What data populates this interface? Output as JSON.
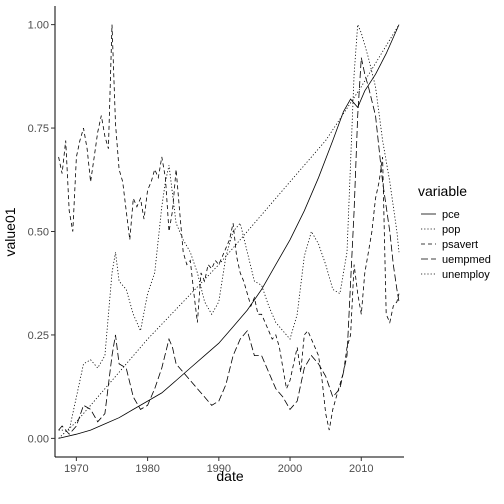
{
  "chart_data": {
    "type": "line",
    "xlabel": "date",
    "ylabel": "value01",
    "xlim": [
      1967,
      2016
    ],
    "ylim": [
      -0.045,
      1.045
    ],
    "x_ticks": [
      1970,
      1980,
      1990,
      2000,
      2010
    ],
    "x_tick_labels": [
      "1970",
      "1980",
      "1990",
      "2000",
      "2010"
    ],
    "y_ticks": [
      0,
      0.25,
      0.5,
      0.75,
      1
    ],
    "y_tick_labels": [
      "0.00",
      "0.25",
      "0.50",
      "0.75",
      "1.00"
    ],
    "grid": false,
    "legend": {
      "title": "variable",
      "position": "right"
    },
    "series": [
      {
        "name": "pce",
        "linetype": "solid",
        "x": [
          1967.5,
          1970,
          1972,
          1974,
          1976,
          1978,
          1980,
          1982,
          1984,
          1986,
          1988,
          1990,
          1992,
          1994,
          1996,
          1998,
          2000,
          2002,
          2004,
          2006,
          2007.5,
          2008.5,
          2009.5,
          2010.5,
          2012,
          2013.5,
          2015.3
        ],
        "y": [
          0.0,
          0.01,
          0.02,
          0.035,
          0.05,
          0.07,
          0.09,
          0.11,
          0.14,
          0.17,
          0.2,
          0.23,
          0.27,
          0.31,
          0.36,
          0.42,
          0.48,
          0.55,
          0.63,
          0.72,
          0.79,
          0.82,
          0.8,
          0.84,
          0.88,
          0.93,
          1.0
        ]
      },
      {
        "name": "pop",
        "linetype": "dotted",
        "x": [
          1967.5,
          1970,
          1975,
          1980,
          1985,
          1990,
          1995,
          2000,
          2005,
          2010,
          2015.3
        ],
        "y": [
          0.0,
          0.04,
          0.14,
          0.24,
          0.33,
          0.42,
          0.52,
          0.62,
          0.72,
          0.85,
          1.0
        ]
      },
      {
        "name": "psavert",
        "linetype": "dashed",
        "x": [
          1967.5,
          1968,
          1968.5,
          1969,
          1969.5,
          1970,
          1970.5,
          1971,
          1971.5,
          1972,
          1972.5,
          1973,
          1973.5,
          1974,
          1974.5,
          1975,
          1975.5,
          1976,
          1976.5,
          1977,
          1977.5,
          1978,
          1978.5,
          1979,
          1979.5,
          1980,
          1980.5,
          1981,
          1981.5,
          1982,
          1982.5,
          1983,
          1983.5,
          1984,
          1984.5,
          1985,
          1985.5,
          1986,
          1986.5,
          1987,
          1987.5,
          1988,
          1988.5,
          1989,
          1989.5,
          1990,
          1990.5,
          1991,
          1991.5,
          1992,
          1992.5,
          1993,
          1993.5,
          1994,
          1994.5,
          1995,
          1995.5,
          1996,
          1996.5,
          1997,
          1997.5,
          1998,
          1998.5,
          1999,
          1999.5,
          2000,
          2000.5,
          2001,
          2001.5,
          2002,
          2002.5,
          2003,
          2003.5,
          2004,
          2004.5,
          2005,
          2005.5,
          2006,
          2006.5,
          2007,
          2007.5,
          2008,
          2008.5,
          2009,
          2009.5,
          2010,
          2010.5,
          2011,
          2011.5,
          2012,
          2012.5,
          2013,
          2013.5,
          2014,
          2014.5,
          2015,
          2015.3
        ],
        "y": [
          0.68,
          0.64,
          0.72,
          0.55,
          0.5,
          0.68,
          0.72,
          0.75,
          0.7,
          0.62,
          0.68,
          0.74,
          0.78,
          0.73,
          0.7,
          1.0,
          0.76,
          0.65,
          0.62,
          0.55,
          0.48,
          0.58,
          0.56,
          0.58,
          0.53,
          0.6,
          0.62,
          0.65,
          0.63,
          0.68,
          0.63,
          0.5,
          0.55,
          0.65,
          0.55,
          0.45,
          0.42,
          0.43,
          0.35,
          0.28,
          0.4,
          0.38,
          0.42,
          0.41,
          0.43,
          0.42,
          0.44,
          0.46,
          0.48,
          0.52,
          0.44,
          0.4,
          0.38,
          0.35,
          0.32,
          0.34,
          0.3,
          0.3,
          0.28,
          0.26,
          0.24,
          0.25,
          0.22,
          0.17,
          0.12,
          0.14,
          0.18,
          0.22,
          0.16,
          0.25,
          0.26,
          0.24,
          0.22,
          0.2,
          0.14,
          0.06,
          0.02,
          0.07,
          0.1,
          0.13,
          0.16,
          0.22,
          0.25,
          0.42,
          0.35,
          0.3,
          0.4,
          0.45,
          0.5,
          0.58,
          0.62,
          0.68,
          0.3,
          0.28,
          0.32,
          0.33,
          0.35
        ]
      },
      {
        "name": "uempmed",
        "linetype": "longdash",
        "x": [
          1967.5,
          1968,
          1969,
          1970,
          1971,
          1972,
          1973,
          1974,
          1975,
          1975.5,
          1976,
          1977,
          1978,
          1979,
          1980,
          1981,
          1982,
          1983,
          1983.5,
          1984,
          1985,
          1986,
          1987,
          1988,
          1989,
          1990,
          1991,
          1992,
          1993,
          1994,
          1995,
          1996,
          1997,
          1998,
          1999,
          2000,
          2001,
          2002,
          2003,
          2004,
          2005,
          2006,
          2007,
          2008,
          2009,
          2009.5,
          2010,
          2010.5,
          2011,
          2012,
          2013,
          2014,
          2014.5,
          2015,
          2015.3
        ],
        "y": [
          0.02,
          0.03,
          0.01,
          0.03,
          0.08,
          0.07,
          0.04,
          0.06,
          0.2,
          0.25,
          0.18,
          0.17,
          0.1,
          0.07,
          0.08,
          0.12,
          0.17,
          0.24,
          0.22,
          0.18,
          0.16,
          0.14,
          0.12,
          0.1,
          0.08,
          0.09,
          0.13,
          0.2,
          0.24,
          0.26,
          0.2,
          0.2,
          0.16,
          0.12,
          0.1,
          0.07,
          0.09,
          0.17,
          0.2,
          0.18,
          0.15,
          0.1,
          0.12,
          0.2,
          0.55,
          0.78,
          0.92,
          0.88,
          0.85,
          0.78,
          0.62,
          0.5,
          0.42,
          0.36,
          0.33
        ]
      },
      {
        "name": "unemploy",
        "linetype": "dotted",
        "x": [
          1967.5,
          1968,
          1969,
          1970,
          1971,
          1972,
          1973,
          1974,
          1975,
          1975.5,
          1976,
          1977,
          1978,
          1979,
          1980,
          1981,
          1982,
          1982.5,
          1983,
          1984,
          1985,
          1986,
          1987,
          1988,
          1989,
          1990,
          1991,
          1992,
          1993,
          1994,
          1995,
          1996,
          1997,
          1998,
          1999,
          2000,
          2001,
          2002,
          2003,
          2004,
          2005,
          2006,
          2007,
          2008,
          2009,
          2009.5,
          2010,
          2011,
          2012,
          2013,
          2014,
          2015,
          2015.3
        ],
        "y": [
          0.02,
          0.02,
          0.02,
          0.1,
          0.18,
          0.19,
          0.17,
          0.2,
          0.4,
          0.45,
          0.38,
          0.36,
          0.3,
          0.26,
          0.35,
          0.4,
          0.56,
          0.62,
          0.66,
          0.52,
          0.48,
          0.45,
          0.4,
          0.33,
          0.3,
          0.33,
          0.44,
          0.5,
          0.52,
          0.45,
          0.38,
          0.37,
          0.32,
          0.28,
          0.26,
          0.24,
          0.3,
          0.44,
          0.5,
          0.47,
          0.42,
          0.36,
          0.35,
          0.45,
          0.88,
          1.0,
          0.98,
          0.92,
          0.85,
          0.72,
          0.62,
          0.5,
          0.45
        ]
      }
    ]
  }
}
